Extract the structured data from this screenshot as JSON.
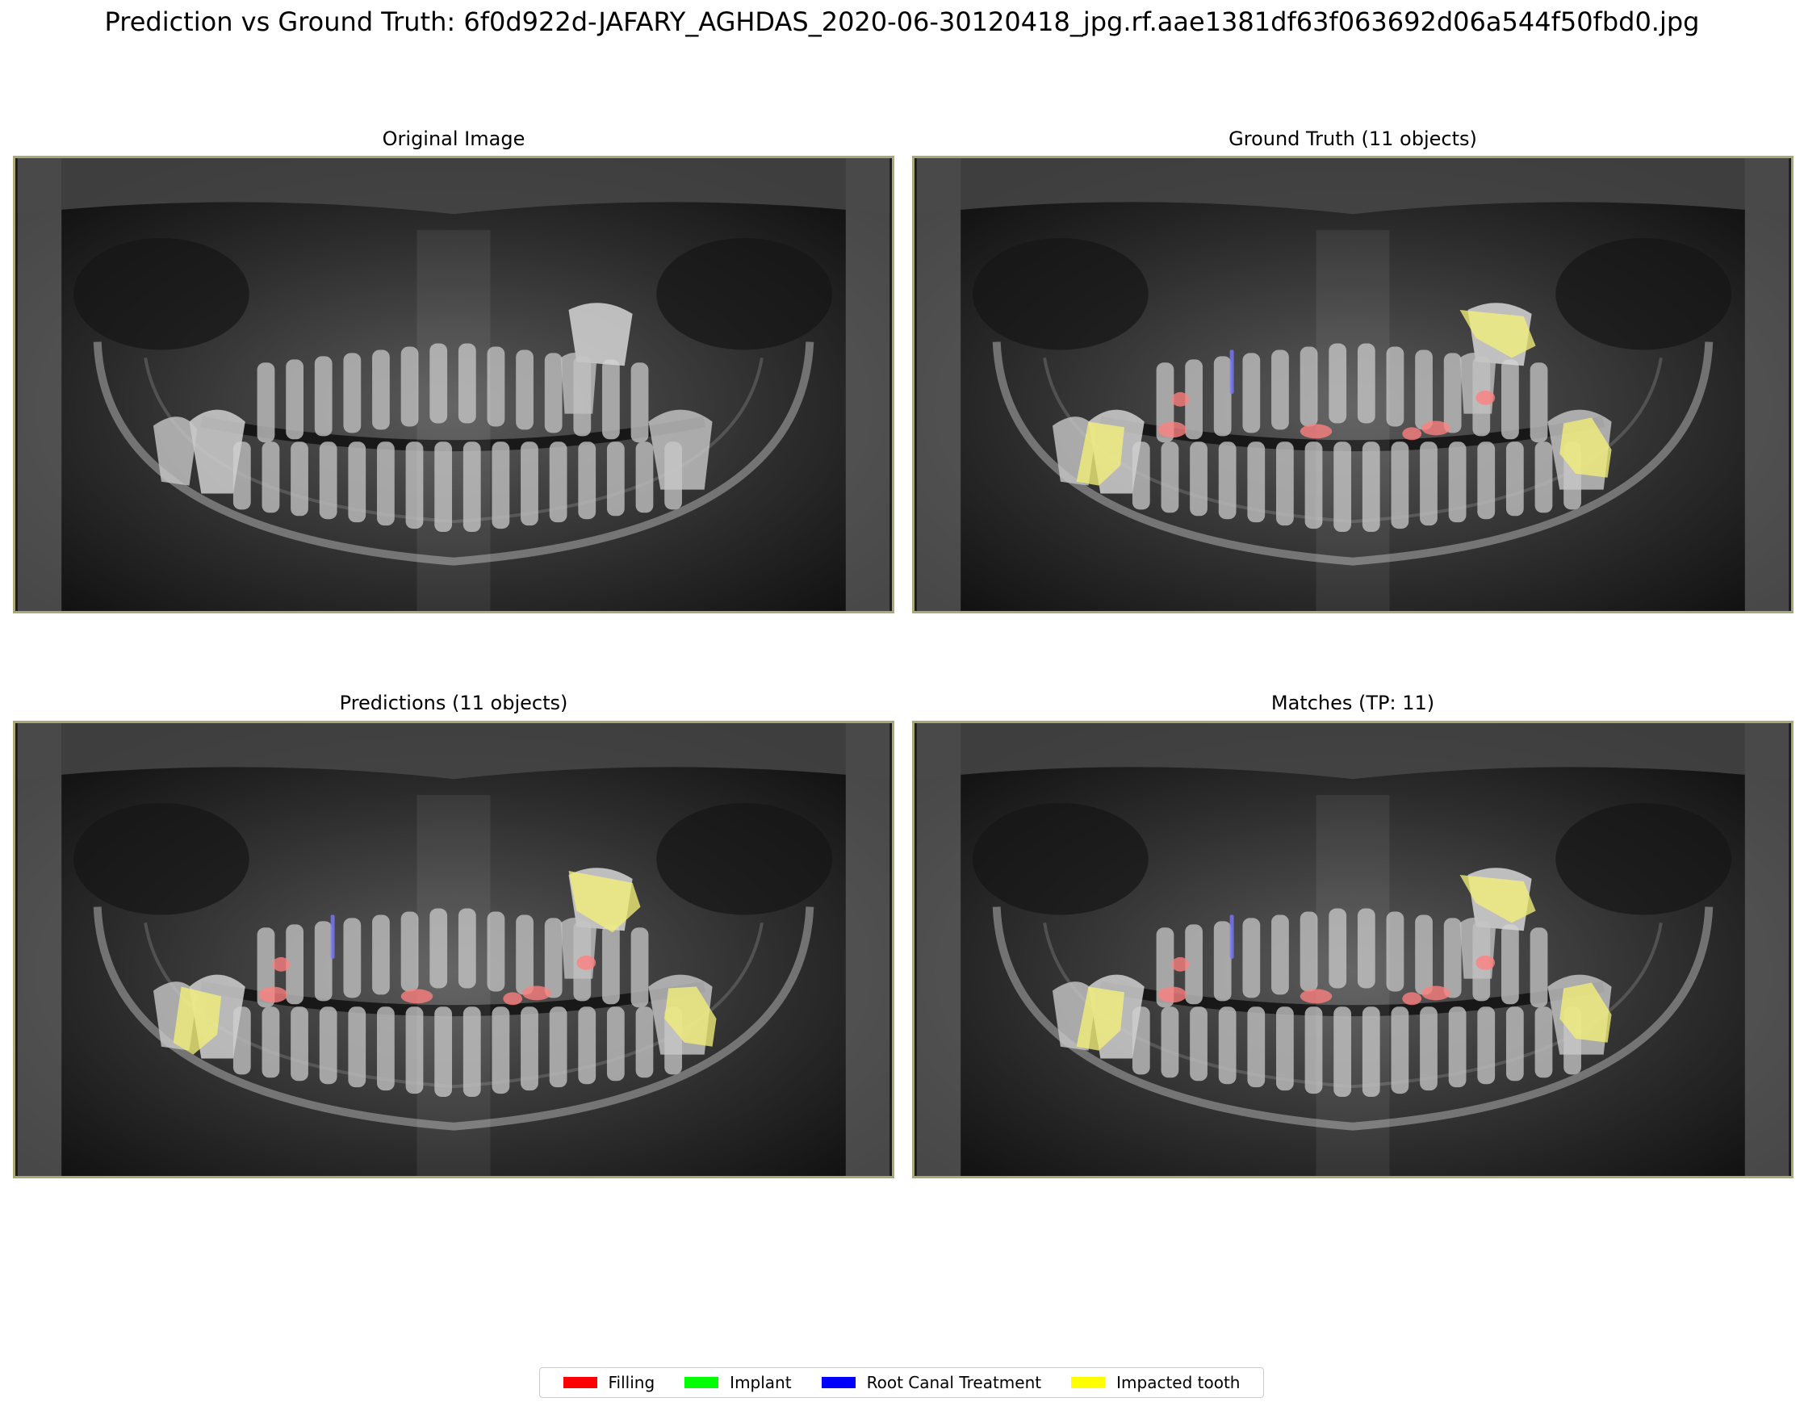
{
  "title": "Prediction vs Ground Truth: 6f0d922d-JAFARY_AGHDAS_2020-06-30120418_jpg.rf.aae1381df63f063692d06a544f50fbd0.jpg",
  "panels": {
    "original": {
      "title": "Original Image"
    },
    "ground_truth": {
      "title": "Ground Truth (11 objects)"
    },
    "predictions": {
      "title": "Predictions (11 objects)"
    },
    "matches": {
      "title": "Matches (TP: 11)"
    }
  },
  "legend": [
    {
      "label": "Filling",
      "color": "#ff0000"
    },
    {
      "label": "Implant",
      "color": "#00ff00"
    },
    {
      "label": "Root Canal Treatment",
      "color": "#0000ff"
    },
    {
      "label": "Impacted tooth",
      "color": "#ffff00"
    }
  ],
  "overlay_colors": {
    "filling": "#ff8080",
    "root_canal": "#7a7aff",
    "impacted": "#f3f07a"
  }
}
